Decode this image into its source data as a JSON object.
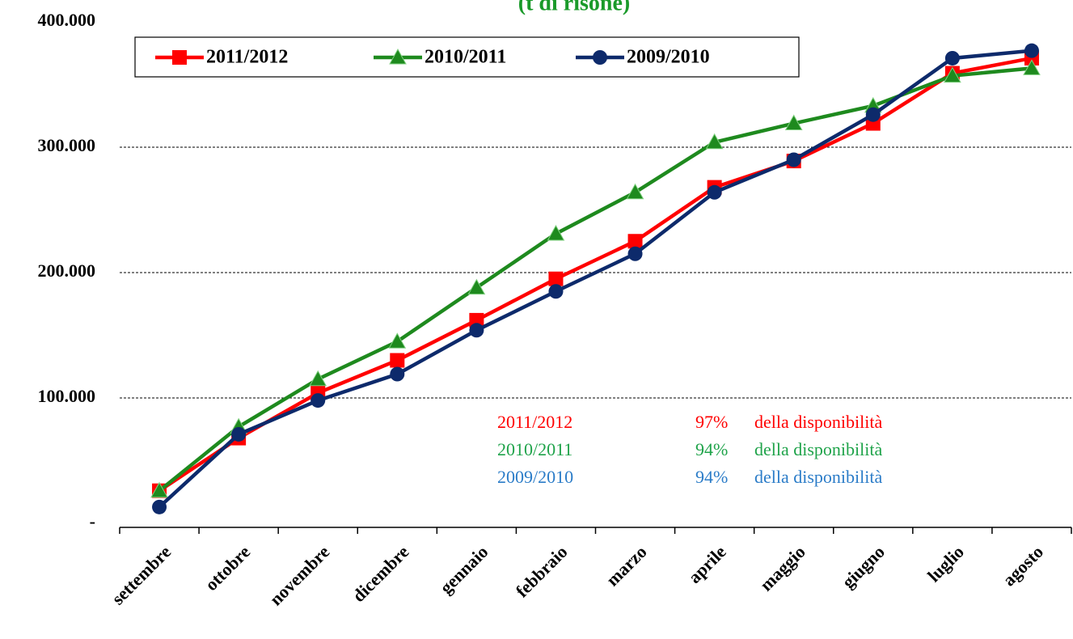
{
  "chart_data": {
    "type": "line",
    "title": "(t di risone)",
    "title_color": "#1a9a2a",
    "categories": [
      "settembre",
      "ottobre",
      "novembre",
      "dicembre",
      "gennaio",
      "febbraio",
      "marzo",
      "aprile",
      "maggio",
      "giugno",
      "luglio",
      "agosto"
    ],
    "series": [
      {
        "name": "2011/2012",
        "color": "#ff0000",
        "marker": "square",
        "values": [
          26000,
          68000,
          104000,
          130000,
          162000,
          195000,
          225000,
          268000,
          289000,
          319000,
          359000,
          371000
        ]
      },
      {
        "name": "2010/2011",
        "color": "#1e8a1e",
        "marker": "triangle",
        "values": [
          26000,
          77000,
          115000,
          145000,
          188000,
          231000,
          264000,
          304000,
          319000,
          333000,
          357000,
          363000
        ]
      },
      {
        "name": "2009/2010",
        "color": "#0d2a6b",
        "marker": "circle",
        "values": [
          13000,
          71000,
          98000,
          119000,
          154000,
          185000,
          215000,
          264000,
          290000,
          326000,
          371000,
          377000
        ]
      }
    ],
    "ylim": [
      0,
      400000
    ],
    "yticks": [
      {
        "value": 0,
        "label": "-"
      },
      {
        "value": 100000,
        "label": "100.000"
      },
      {
        "value": 200000,
        "label": "200.000"
      },
      {
        "value": 300000,
        "label": "300.000"
      },
      {
        "value": 400000,
        "label": "400.000"
      }
    ],
    "grid": true,
    "legend": "top-left",
    "annotations": [
      {
        "season": "2011/2012",
        "share": "97%",
        "text": "della disponibilità",
        "color": "#ff0000"
      },
      {
        "season": "2010/2011",
        "share": "94%",
        "text": "della disponibilità",
        "color": "#1fa34a"
      },
      {
        "season": "2009/2010",
        "share": "94%",
        "text": "della disponibilità",
        "color": "#2b7cc8"
      }
    ]
  }
}
